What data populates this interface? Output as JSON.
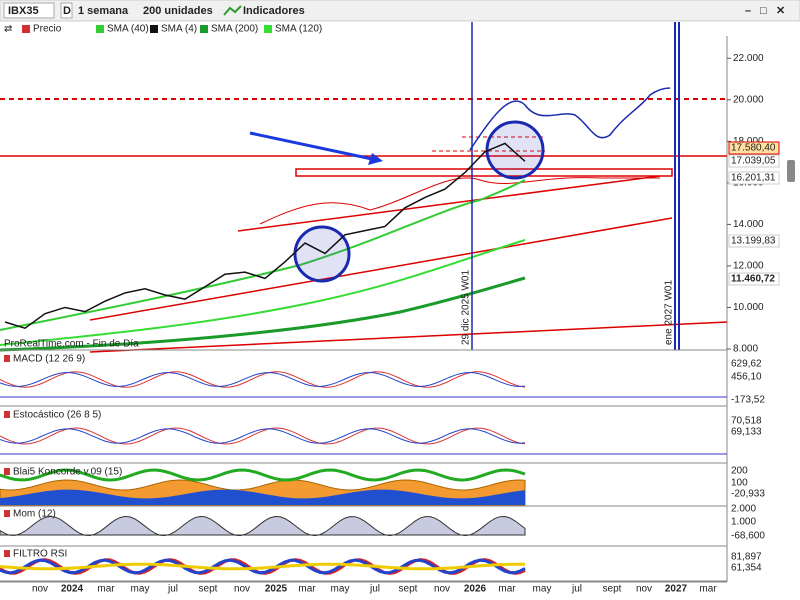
{
  "toolbar": {
    "symbol": "IBX35",
    "mode": "D",
    "period": "1 semana",
    "units": "200 unidades",
    "indicators": "Indicadores"
  },
  "legend": [
    "Precio",
    "SMA (40)",
    "SMA (4)",
    "SMA (200)",
    "SMA (120)"
  ],
  "price_axis": {
    "ylim": [
      8000,
      23000
    ],
    "ticks": [
      {
        "value": 8000,
        "label": "8.000"
      },
      {
        "value": 10000,
        "label": "10.000"
      },
      {
        "value": 12000,
        "label": "12.000"
      },
      {
        "value": 14000,
        "label": "14.000"
      },
      {
        "value": 16000,
        "label": "16.000"
      },
      {
        "value": 18000,
        "label": "18.000"
      },
      {
        "value": 20000,
        "label": "20.000"
      },
      {
        "value": 22000,
        "label": "22.000"
      }
    ]
  },
  "price": {
    "values": [
      9300,
      9000,
      9700,
      10000,
      9800,
      10300,
      10700,
      10900,
      10600,
      10400,
      11000,
      11600,
      11700,
      11400,
      12200,
      13100,
      12600,
      13500,
      13700,
      13900,
      14800,
      15300,
      15700,
      16500,
      17500,
      17900,
      17040
    ]
  },
  "price_labels": [
    "17.580,40",
    "17.039,05",
    "16.201,31",
    "13.199,83",
    "11.460,72"
  ],
  "markers": [
    "29 dic 2025 W01",
    "ene 2027 W01"
  ],
  "source": "ProRealTime.com - Fin de Día",
  "panels": [
    {
      "title": "MACD (12 26 9)",
      "labels": [
        "629,62",
        "456,10",
        "-173,52"
      ]
    },
    {
      "title": "Estocástico (26 8 5)",
      "labels": [
        "70,518",
        "69,133"
      ]
    },
    {
      "title": "Blai5 Koncorde v.09 (15)",
      "labels": [
        "200",
        "100",
        "-20,933"
      ]
    },
    {
      "title": "Mom (12)",
      "labels": [
        "2.000",
        "1.000",
        "-68,600"
      ]
    },
    {
      "title": "FILTRO RSI",
      "labels": [
        "81,897",
        "61,354"
      ]
    }
  ],
  "x_axis": [
    "nov",
    "2024",
    "mar",
    "may",
    "jul",
    "sept",
    "nov",
    "2025",
    "mar",
    "may",
    "jul",
    "sept",
    "nov",
    "2026",
    "mar",
    "may",
    "jul",
    "sept",
    "nov",
    "2027",
    "mar"
  ]
}
